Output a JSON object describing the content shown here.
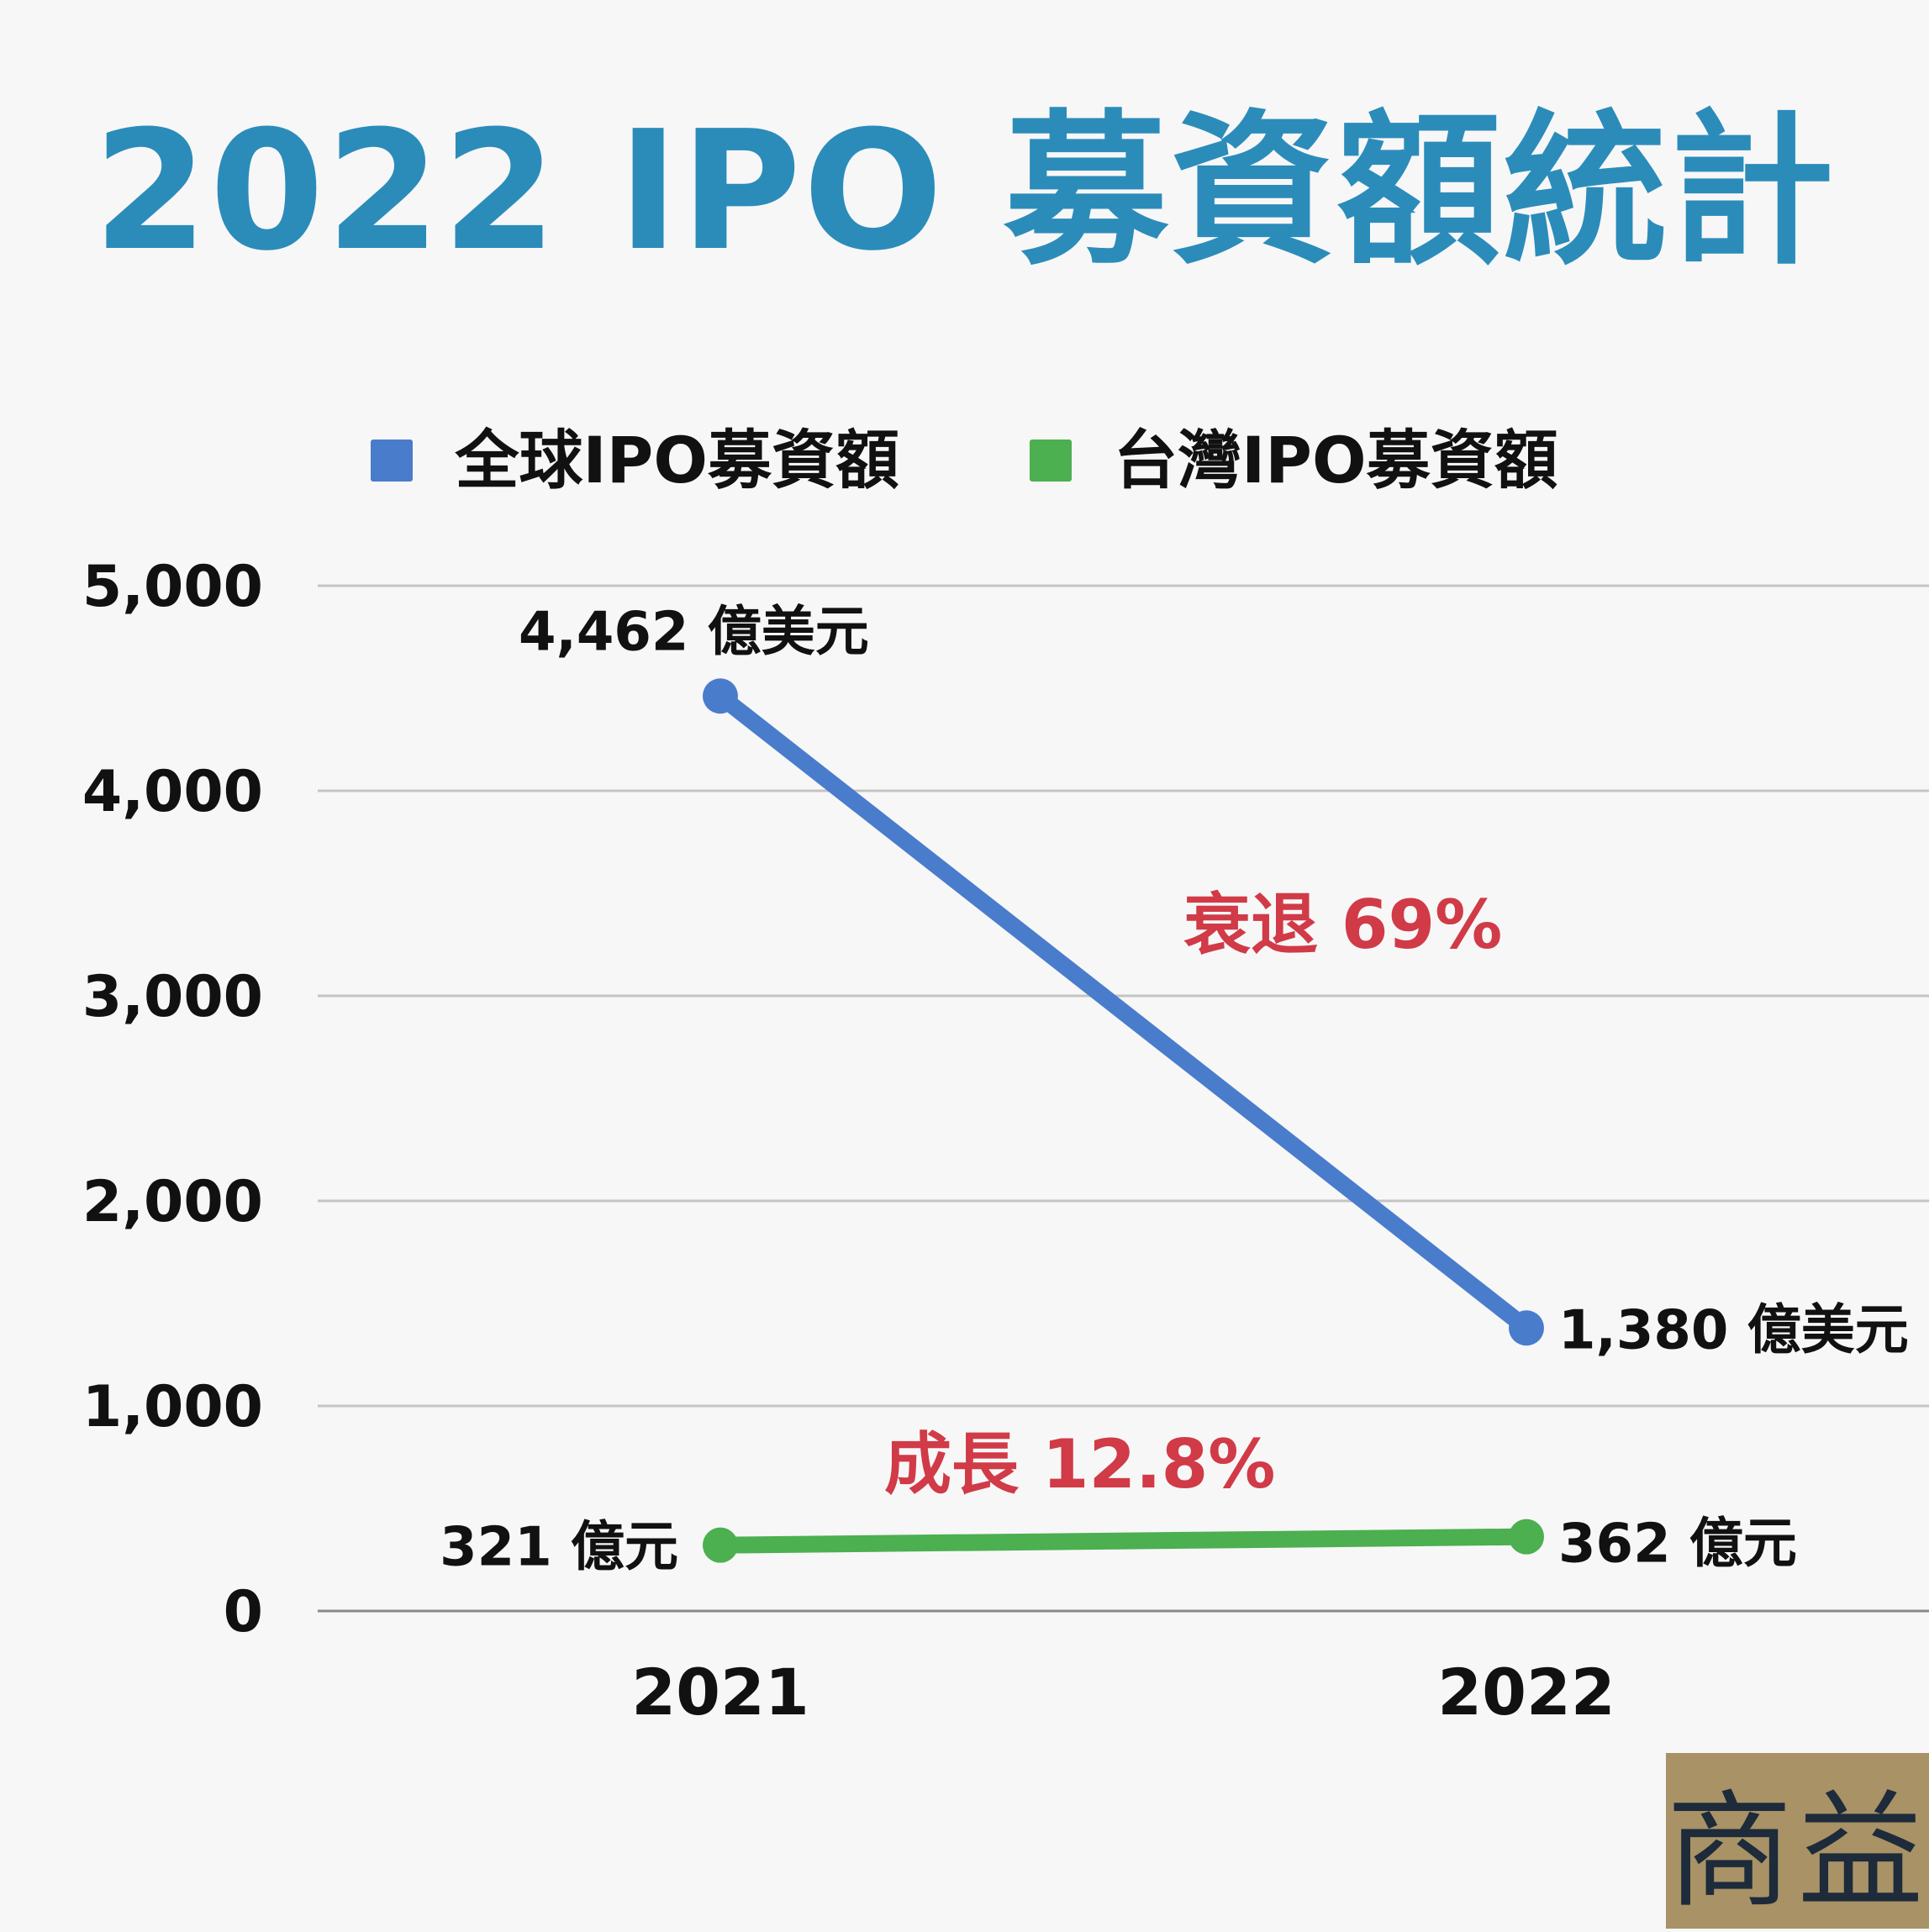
{
  "title": "2022 IPO 募資額統計",
  "brand": {
    "logo_text": "商益",
    "bg_color": "#a89266"
  },
  "chart_data": {
    "type": "line",
    "title": "2022 IPO 募資額統計",
    "categories": [
      "2021",
      "2022"
    ],
    "ylim": [
      0,
      5000
    ],
    "yticks": [
      "0",
      "1,000",
      "2,000",
      "3,000",
      "4,000",
      "5,000"
    ],
    "grid": true,
    "legend_position": "top",
    "series": [
      {
        "name": "全球IPO募資額",
        "color": "#4a7ccc",
        "values": [
          4462,
          1380
        ],
        "labels": [
          "4,462 億美元",
          "1,380 億美元"
        ]
      },
      {
        "name": "台灣IPO募資額",
        "color": "#4caf50",
        "values": [
          321,
          362
        ],
        "labels": [
          "321 億元",
          "362 億元"
        ]
      }
    ],
    "annotations": [
      {
        "text": "衰退 69%",
        "color": "#d13a47"
      },
      {
        "text": "成長 12.8%",
        "color": "#d13a47"
      }
    ]
  }
}
